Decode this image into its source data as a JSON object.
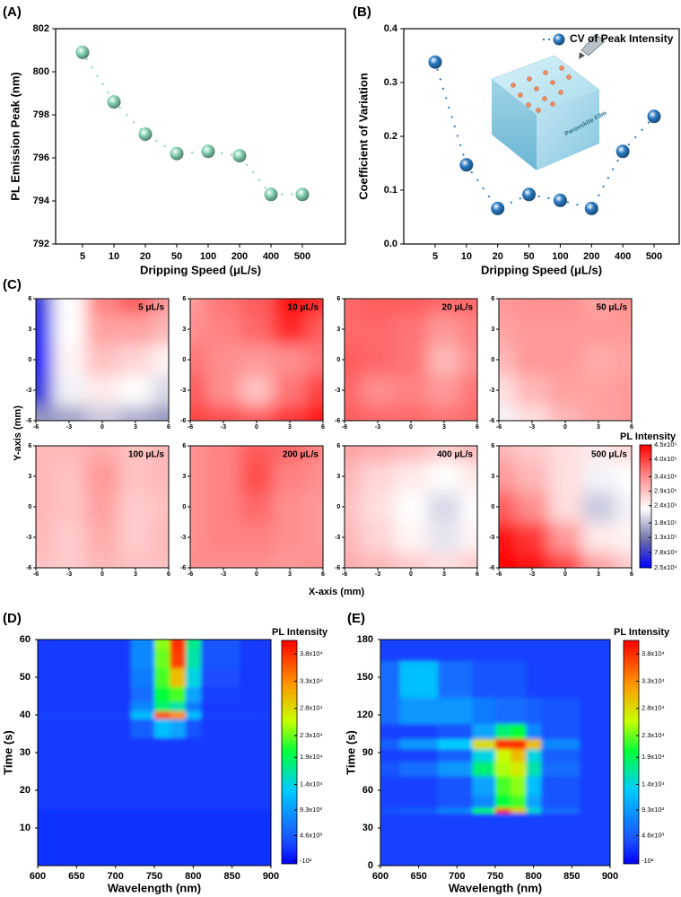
{
  "chart_data": [
    {
      "type": "scatter",
      "label": "(A)",
      "xlabel": "Dripping Speed (μL/s)",
      "ylabel": "PL Emission Peak (nm)",
      "categories": [
        "5",
        "10",
        "20",
        "50",
        "100",
        "200",
        "400",
        "500"
      ],
      "values": [
        800.9,
        798.6,
        797.1,
        796.2,
        796.3,
        796.1,
        794.3,
        794.3
      ],
      "color": "#86d2b4",
      "ylim": [
        792,
        802
      ],
      "yticks": [
        792,
        794,
        796,
        798,
        800,
        802
      ]
    },
    {
      "type": "scatter",
      "label": "(B)",
      "xlabel": "Dripping Speed (μL/s)",
      "ylabel": "Coefficient of Variation",
      "categories": [
        "5",
        "10",
        "20",
        "50",
        "100",
        "200",
        "400",
        "500"
      ],
      "series": [
        {
          "name": "CV of Peak Intensity",
          "color": "#2b7bc4",
          "values": [
            0.338,
            0.147,
            0.066,
            0.092,
            0.081,
            0.066,
            0.172,
            0.237
          ]
        }
      ],
      "ylim": [
        0,
        0.4
      ],
      "yticks": [
        {
          "value": 0,
          "label": "0.0"
        },
        0.1,
        0.2,
        0.3,
        0.4
      ],
      "legend": "upper right",
      "inset_label": "Perovskite Film"
    },
    {
      "type": "heatmap",
      "label": "(C)",
      "xlabel": "X-axis (mm)",
      "ylabel": "Y-axis (mm)",
      "cmap": "bwr",
      "x": [
        -6,
        -3,
        0,
        3,
        6
      ],
      "y": [
        -6,
        -3,
        0,
        3,
        6
      ],
      "xlim": [
        -6,
        6
      ],
      "ylim": [
        -6,
        6
      ],
      "xticks": [
        -6,
        -3,
        0,
        3,
        6
      ],
      "yticks": [
        -6,
        -3,
        0,
        3,
        6
      ],
      "maps": [
        {
          "title": "5 μL/s",
          "z": [
            [
              150000,
              160000,
              190000,
              170000,
              150000
            ],
            [
              60000,
              220000,
              250000,
              230000,
              200000
            ],
            [
              30000,
              240000,
              290000,
              270000,
              240000
            ],
            [
              40000,
              230000,
              320000,
              320000,
              300000
            ],
            [
              60000,
              230000,
              350000,
              380000,
              330000
            ]
          ]
        },
        {
          "title": "10 μL/s",
          "z": [
            [
              400000,
              390000,
              380000,
              410000,
              440000
            ],
            [
              380000,
              340000,
              290000,
              360000,
              400000
            ],
            [
              360000,
              340000,
              330000,
              340000,
              360000
            ],
            [
              340000,
              350000,
              370000,
              420000,
              380000
            ],
            [
              330000,
              360000,
              380000,
              440000,
              420000
            ]
          ]
        },
        {
          "title": "20 μL/s",
          "z": [
            [
              380000,
              370000,
              370000,
              360000,
              370000
            ],
            [
              370000,
              340000,
              350000,
              330000,
              360000
            ],
            [
              380000,
              370000,
              360000,
              300000,
              340000
            ],
            [
              370000,
              370000,
              360000,
              330000,
              350000
            ],
            [
              370000,
              380000,
              380000,
              370000,
              370000
            ]
          ]
        },
        {
          "title": "50 μL/s",
          "z": [
            [
              220000,
              260000,
              300000,
              320000,
              330000
            ],
            [
              260000,
              300000,
              320000,
              320000,
              330000
            ],
            [
              300000,
              330000,
              330000,
              310000,
              320000
            ],
            [
              320000,
              330000,
              330000,
              330000,
              330000
            ],
            [
              330000,
              340000,
              340000,
              320000,
              340000
            ]
          ]
        },
        {
          "title": "100 μL/s",
          "z": [
            [
              290000,
              280000,
              300000,
              290000,
              290000
            ],
            [
              300000,
              280000,
              310000,
              280000,
              300000
            ],
            [
              300000,
              290000,
              320000,
              280000,
              290000
            ],
            [
              300000,
              290000,
              330000,
              290000,
              300000
            ],
            [
              300000,
              300000,
              310000,
              290000,
              300000
            ]
          ]
        },
        {
          "title": "200 μL/s",
          "z": [
            [
              340000,
              340000,
              340000,
              330000,
              340000
            ],
            [
              340000,
              350000,
              350000,
              340000,
              330000
            ],
            [
              340000,
              350000,
              370000,
              340000,
              330000
            ],
            [
              340000,
              350000,
              390000,
              350000,
              340000
            ],
            [
              340000,
              350000,
              380000,
              370000,
              350000
            ]
          ]
        },
        {
          "title": "400 μL/s",
          "z": [
            [
              310000,
              300000,
              280000,
              260000,
              280000
            ],
            [
              300000,
              270000,
              240000,
              210000,
              240000
            ],
            [
              290000,
              260000,
              230000,
              200000,
              230000
            ],
            [
              300000,
              270000,
              250000,
              230000,
              250000
            ],
            [
              320000,
              310000,
              300000,
              280000,
              300000
            ]
          ]
        },
        {
          "title": "500 μL/s",
          "z": [
            [
              450000,
              440000,
              400000,
              320000,
              280000
            ],
            [
              440000,
              410000,
              330000,
              250000,
              240000
            ],
            [
              380000,
              340000,
              260000,
              190000,
              220000
            ],
            [
              330000,
              300000,
              260000,
              220000,
              230000
            ],
            [
              300000,
              280000,
              260000,
              250000,
              270000
            ]
          ]
        }
      ],
      "colorbar": {
        "label": "PL Intensity",
        "lim": [
          25000,
          450000
        ],
        "ticks": [
          {
            "value": 450000,
            "label": "4.5x10⁵"
          },
          {
            "value": 400000,
            "label": "4.0x10⁵"
          },
          {
            "value": 340000,
            "label": "3.4x10⁵"
          },
          {
            "value": 290000,
            "label": "2.9x10⁵"
          },
          {
            "value": 240000,
            "label": "2.4x10⁵"
          },
          {
            "value": 180000,
            "label": "1.8x10⁵"
          },
          {
            "value": 130000,
            "label": "1.3x10⁵"
          },
          {
            "value": 78000,
            "label": "7.8x10⁴"
          },
          {
            "value": 25000,
            "label": "2.5x10⁴"
          }
        ]
      }
    },
    {
      "type": "contour",
      "label": "(D)",
      "xlabel": "Wavelength (nm)",
      "ylabel": "Time (s)",
      "cmap": "jet",
      "x": [
        600,
        700,
        740,
        760,
        780,
        800,
        820,
        900
      ],
      "y": [
        0,
        30,
        38,
        40,
        42,
        45,
        50,
        55,
        60
      ],
      "z": [
        [
          2000,
          2000,
          2000,
          2000,
          2000,
          2000,
          2000,
          2000
        ],
        [
          2500,
          2500,
          2500,
          2500,
          2500,
          2500,
          2500,
          2500
        ],
        [
          2500,
          2500,
          5000,
          12000,
          10000,
          4000,
          2500,
          2500
        ],
        [
          3000,
          3000,
          12000,
          36000,
          33000,
          12000,
          3000,
          3000
        ],
        [
          2500,
          2500,
          8000,
          18000,
          16000,
          7000,
          2500,
          2500
        ],
        [
          2500,
          2500,
          6000,
          20000,
          22000,
          10000,
          3000,
          2500
        ],
        [
          2500,
          2500,
          7000,
          22000,
          30000,
          14000,
          3500,
          2500
        ],
        [
          2500,
          2500,
          8000,
          23000,
          37000,
          16000,
          4000,
          2500
        ],
        [
          2500,
          2500,
          8000,
          24000,
          38000,
          17000,
          4000,
          2500
        ]
      ],
      "xlim": [
        600,
        900
      ],
      "ylim": [
        0,
        60
      ],
      "xticks": [
        600,
        650,
        700,
        750,
        800,
        850,
        900
      ],
      "yticks": [
        10,
        20,
        30,
        40,
        50,
        60
      ],
      "colorbar": {
        "label": "PL Intensity",
        "lim": [
          -600,
          40500
        ],
        "ticks": [
          {
            "value": 38000,
            "label": "3.8x10⁴"
          },
          {
            "value": 33000,
            "label": "3.3x10⁴"
          },
          {
            "value": 28000,
            "label": "2.8x10⁴"
          },
          {
            "value": 23000,
            "label": "2.3x10⁴"
          },
          {
            "value": 19000,
            "label": "1.9x10⁴"
          },
          {
            "value": 14000,
            "label": "1.4x10⁴"
          },
          {
            "value": 9300,
            "label": "9.3x10³"
          },
          {
            "value": 4600,
            "label": "4.6x10³"
          },
          {
            "value": -100,
            "label": "-10²"
          }
        ]
      }
    },
    {
      "type": "contour",
      "label": "(E)",
      "xlabel": "Wavelength (nm)",
      "ylabel": "Time (s)",
      "cmap": "jet",
      "x": [
        600,
        650,
        700,
        740,
        760,
        780,
        800,
        820,
        900
      ],
      "y": [
        0,
        40,
        44,
        48,
        65,
        78,
        88,
        98,
        104,
        122,
        146,
        180
      ],
      "z": [
        [
          3000,
          3000,
          3000,
          3000,
          3000,
          3000,
          3000,
          3000,
          3000
        ],
        [
          3000,
          3000,
          3000,
          3000,
          3000,
          3000,
          3000,
          3000,
          3000
        ],
        [
          4000,
          5000,
          8000,
          20000,
          38000,
          30000,
          15000,
          6000,
          3000
        ],
        [
          3000,
          3000,
          4000,
          8000,
          20000,
          22000,
          10000,
          4000,
          3000
        ],
        [
          3000,
          3000,
          4000,
          10000,
          22000,
          24000,
          12000,
          4000,
          3000
        ],
        [
          4000,
          6000,
          9000,
          18000,
          25000,
          27000,
          16000,
          6000,
          3000
        ],
        [
          3000,
          3000,
          5000,
          14000,
          26000,
          30000,
          14000,
          5000,
          3000
        ],
        [
          5000,
          9000,
          13000,
          28000,
          38000,
          38000,
          30000,
          8000,
          3000
        ],
        [
          3000,
          3000,
          4000,
          10000,
          18000,
          20000,
          8000,
          4000,
          3000
        ],
        [
          6000,
          9000,
          9000,
          7000,
          6000,
          6000,
          5000,
          4000,
          3000
        ],
        [
          6000,
          12000,
          6000,
          4000,
          4000,
          4000,
          3000,
          3000,
          3000
        ],
        [
          3000,
          3000,
          3000,
          3000,
          3000,
          3000,
          3000,
          3000,
          3000
        ]
      ],
      "xlim": [
        600,
        900
      ],
      "ylim": [
        0,
        180
      ],
      "xticks": [
        600,
        650,
        700,
        750,
        800,
        850,
        900
      ],
      "yticks": [
        0,
        30,
        60,
        90,
        120,
        150,
        180
      ],
      "colorbar": {
        "label": "PL Intensity",
        "lim": [
          -600,
          40500
        ],
        "ticks": [
          {
            "value": 38000,
            "label": "3.8x10⁴"
          },
          {
            "value": 33000,
            "label": "3.3x10⁴"
          },
          {
            "value": 28000,
            "label": "2.8x10⁴"
          },
          {
            "value": 23000,
            "label": "2.3x10⁴"
          },
          {
            "value": 19000,
            "label": "1.9x10⁴"
          },
          {
            "value": 14000,
            "label": "1.4x10⁴"
          },
          {
            "value": 9300,
            "label": "9.3x10³"
          },
          {
            "value": 4600,
            "label": "4.6x10³"
          },
          {
            "value": -100,
            "label": "-10²"
          }
        ]
      }
    }
  ]
}
